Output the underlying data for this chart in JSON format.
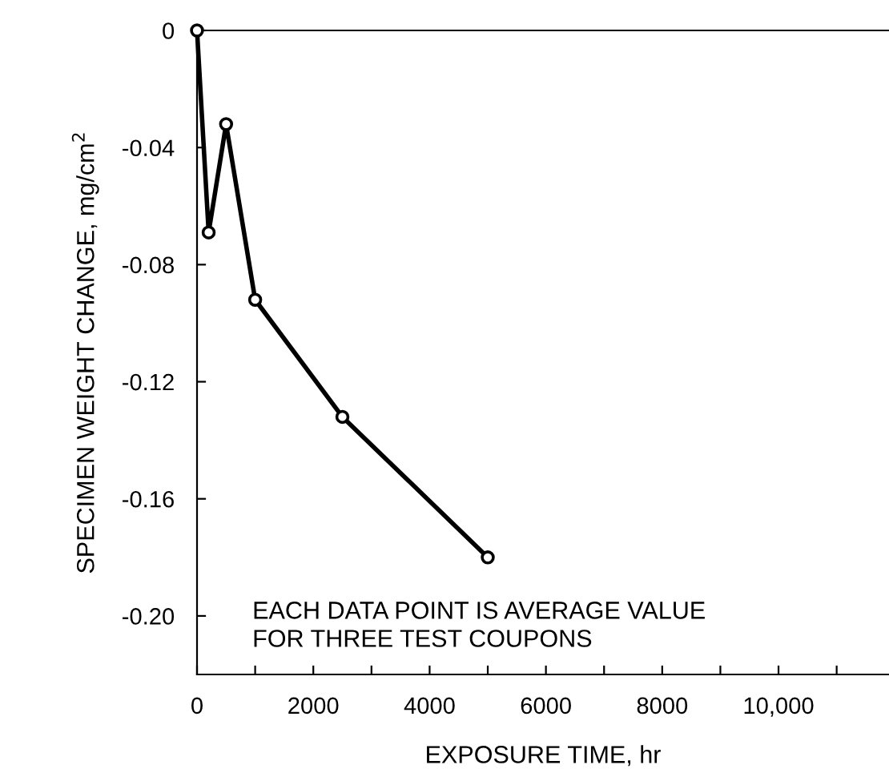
{
  "chart_data": {
    "type": "line",
    "xlabel": "EXPOSURE TIME, hr",
    "ylabel": "SPECIMEN WEIGHT CHANGE, mg/cm$^{2}$",
    "x": [
      0,
      200,
      500,
      1000,
      2500,
      5000
    ],
    "series": [
      {
        "color": "#000000",
        "values": [
          0,
          -0.069,
          -0.032,
          -0.092,
          -0.132,
          -0.18
        ]
      }
    ],
    "marker": "circle",
    "line_style": "solid",
    "xlim": [
      0,
      11900
    ],
    "ylim": [
      -0.22,
      0
    ],
    "xticks": [
      0,
      {
        "value": 1000,
        "label": null
      },
      2000,
      {
        "value": 3000,
        "label": null
      },
      4000,
      {
        "value": 5000,
        "label": null
      },
      6000,
      {
        "value": 7000,
        "label": null
      },
      8000,
      {
        "value": 9000,
        "label": null
      },
      {
        "value": 10000,
        "label": "10,000"
      },
      {
        "value": 11000,
        "label": null
      }
    ],
    "yticks": [
      0,
      -0.04,
      -0.08,
      -0.12,
      -0.16,
      {
        "value": -0.2,
        "label": "-0.20"
      }
    ],
    "grid": false,
    "legend": false,
    "annotations": [
      "EACH DATA POINT IS AVERAGE VALUE\nFOR THREE TEST COUPONS"
    ]
  }
}
